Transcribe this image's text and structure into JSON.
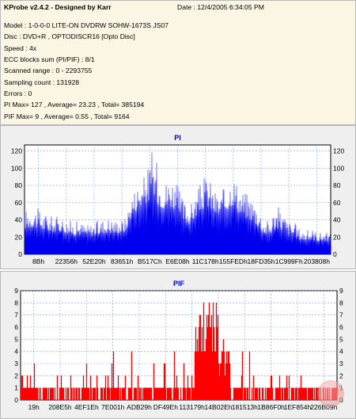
{
  "info": {
    "title": "KProbe v2.4.2 - Designed by Karr",
    "date": "Date : 12/4/2005 6:34:05 PM",
    "lines": [
      "Model : 1-0-0-0 LITE-ON DVDRW SOHW-1673S JS07",
      "Disc : DVD+R , OPTODISCR16 [Opto Disc]",
      "Speed : 4x",
      "ECC blocks sum (PI/PIF) : 8/1",
      "Scanned range : 0 - 2293755",
      "Sampling count : 131928",
      "Errors : 0",
      "PI Max= 127 , Average= 23.23 , Total= 385194",
      "PIF Max= 9 , Average= 0.55 , Total= 9164"
    ]
  },
  "colors": {
    "pi": "#0000ee",
    "pif": "#ff0000",
    "grid": "#7f9fff",
    "title": "#0000cc"
  },
  "chart_data": [
    {
      "type": "area",
      "title": "PI",
      "ylim": [
        0,
        127
      ],
      "yticks": [
        0,
        20,
        40,
        60,
        80,
        100,
        120
      ],
      "xtick_labels": [
        "8Bh",
        "22356h",
        "52E20h",
        "83651h",
        "B517Ch",
        "E6E08h",
        "11C178h",
        "155FEDh",
        "18FD35h",
        "1C999Fh",
        "203808h"
      ],
      "grid": true,
      "envelope": [
        [
          0,
          52
        ],
        [
          3,
          56
        ],
        [
          6,
          50
        ],
        [
          9,
          45
        ],
        [
          12,
          44
        ],
        [
          15,
          40
        ],
        [
          18,
          38
        ],
        [
          21,
          35
        ],
        [
          24,
          40
        ],
        [
          27,
          44
        ],
        [
          30,
          41
        ],
        [
          33,
          43
        ],
        [
          35,
          72
        ],
        [
          37,
          84
        ],
        [
          39,
          92
        ],
        [
          41,
          112
        ],
        [
          42,
          127
        ],
        [
          44,
          96
        ],
        [
          46,
          88
        ],
        [
          48,
          95
        ],
        [
          50,
          80
        ],
        [
          52,
          64
        ],
        [
          54,
          57
        ],
        [
          56,
          70
        ],
        [
          58,
          88
        ],
        [
          60,
          93
        ],
        [
          62,
          76
        ],
        [
          64,
          70
        ],
        [
          66,
          84
        ],
        [
          68,
          97
        ],
        [
          70,
          80
        ],
        [
          72,
          74
        ],
        [
          74,
          70
        ],
        [
          76,
          60
        ],
        [
          78,
          42
        ],
        [
          80,
          40
        ],
        [
          82,
          57
        ],
        [
          84,
          54
        ],
        [
          86,
          40
        ],
        [
          88,
          38
        ],
        [
          90,
          30
        ],
        [
          92,
          28
        ],
        [
          94,
          30
        ],
        [
          96,
          26
        ],
        [
          98,
          26
        ],
        [
          100,
          24
        ]
      ],
      "base": [
        [
          0,
          30
        ],
        [
          3,
          32
        ],
        [
          6,
          28
        ],
        [
          9,
          26
        ],
        [
          12,
          27
        ],
        [
          15,
          22
        ],
        [
          18,
          23
        ],
        [
          21,
          21
        ],
        [
          24,
          23
        ],
        [
          27,
          25
        ],
        [
          30,
          24
        ],
        [
          33,
          26
        ],
        [
          35,
          45
        ],
        [
          37,
          52
        ],
        [
          39,
          58
        ],
        [
          41,
          62
        ],
        [
          42,
          65
        ],
        [
          44,
          56
        ],
        [
          46,
          52
        ],
        [
          48,
          55
        ],
        [
          50,
          48
        ],
        [
          52,
          38
        ],
        [
          54,
          35
        ],
        [
          56,
          44
        ],
        [
          58,
          52
        ],
        [
          60,
          55
        ],
        [
          62,
          47
        ],
        [
          64,
          43
        ],
        [
          66,
          50
        ],
        [
          68,
          58
        ],
        [
          70,
          48
        ],
        [
          72,
          42
        ],
        [
          74,
          40
        ],
        [
          76,
          33
        ],
        [
          78,
          24
        ],
        [
          80,
          22
        ],
        [
          82,
          30
        ],
        [
          84,
          28
        ],
        [
          86,
          22
        ],
        [
          88,
          21
        ],
        [
          90,
          17
        ],
        [
          92,
          16
        ],
        [
          94,
          17
        ],
        [
          96,
          15
        ],
        [
          98,
          16
        ],
        [
          100,
          14
        ]
      ]
    },
    {
      "type": "bar",
      "title": "PIF",
      "ylim": [
        0,
        9
      ],
      "yticks": [
        0,
        1,
        2,
        3,
        4,
        5,
        6,
        7,
        8,
        9
      ],
      "xtick_labels": [
        "19h",
        "208E5h",
        "4EF1Eh",
        "7E001h",
        "ADB29h",
        "DF49Eh",
        "113179h",
        "14B02Eh",
        "181513h",
        "1B86F0h",
        "1EF854h",
        "226B09h"
      ],
      "grid": true,
      "envelope": [
        [
          0,
          2
        ],
        [
          5,
          3
        ],
        [
          8,
          1
        ],
        [
          12,
          2
        ],
        [
          16,
          3
        ],
        [
          20,
          4
        ],
        [
          24,
          4
        ],
        [
          28,
          4
        ],
        [
          32,
          3
        ],
        [
          36,
          5
        ],
        [
          40,
          4
        ],
        [
          44,
          4
        ],
        [
          48,
          4
        ],
        [
          50,
          5
        ],
        [
          52,
          6
        ],
        [
          54,
          6
        ],
        [
          56,
          7
        ],
        [
          58,
          8
        ],
        [
          60,
          9
        ],
        [
          62,
          8
        ],
        [
          64,
          5
        ],
        [
          66,
          4
        ],
        [
          70,
          4
        ],
        [
          75,
          3
        ],
        [
          80,
          3
        ],
        [
          85,
          3
        ],
        [
          90,
          2
        ],
        [
          95,
          2
        ],
        [
          100,
          1
        ]
      ]
    }
  ]
}
